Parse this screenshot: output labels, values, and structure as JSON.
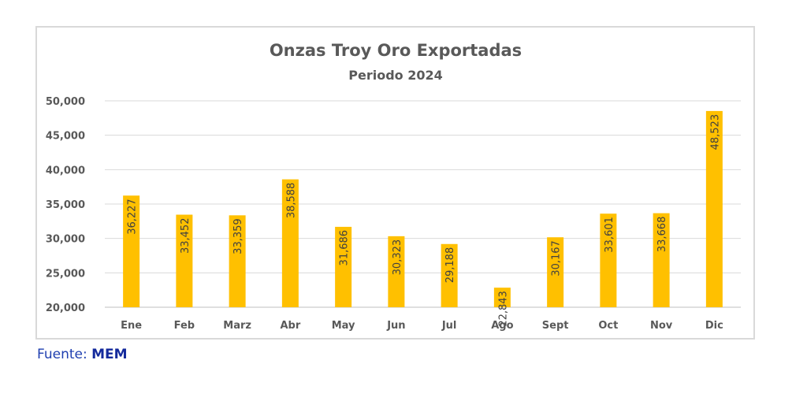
{
  "chart_data": {
    "type": "bar",
    "title": "Onzas Troy Oro Exportadas",
    "subtitle": "Periodo 2024",
    "categories": [
      "Ene",
      "Feb",
      "Marz",
      "Abr",
      "May",
      "Jun",
      "Jul",
      "Ago",
      "Sept",
      "Oct",
      "Nov",
      "Dic"
    ],
    "values": [
      36227,
      33452,
      33359,
      38588,
      31686,
      30323,
      29188,
      22843,
      30167,
      33601,
      33668,
      48523
    ],
    "data_labels": [
      "36,227",
      "33,452",
      "33,359",
      "38,588",
      "31,686",
      "30,323",
      "29,188",
      "22,843",
      "30,167",
      "33,601",
      "33,668",
      "48,523"
    ],
    "ylim": [
      20000,
      50000
    ],
    "yticks": [
      20000,
      25000,
      30000,
      35000,
      40000,
      45000,
      50000
    ],
    "ytick_labels": [
      "20,000",
      "25,000",
      "30,000",
      "35,000",
      "40,000",
      "45,000",
      "50,000"
    ],
    "grid": true,
    "bar_color": "#ffc000",
    "xlabel": "",
    "ylabel": ""
  },
  "source": {
    "prefix": "Fuente: ",
    "name": "MEM"
  }
}
